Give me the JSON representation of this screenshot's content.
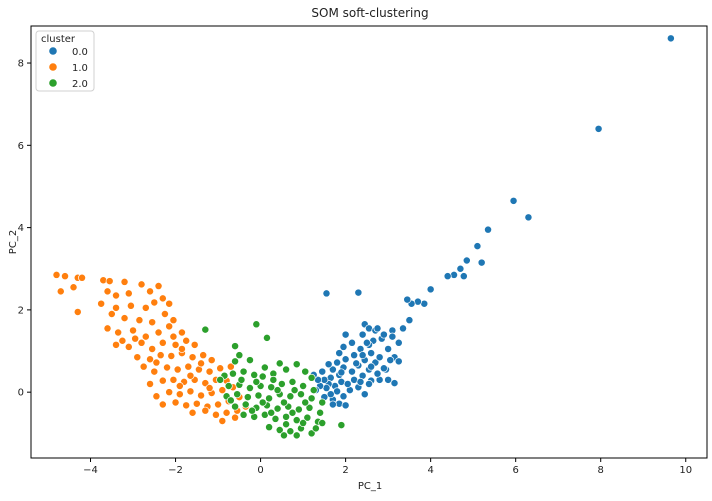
{
  "chart_data": {
    "type": "scatter",
    "title": "SOM soft-clustering",
    "xlabel": "PC_1",
    "ylabel": "PC_2",
    "xlim": [
      -5.4,
      10.5
    ],
    "ylim": [
      -1.6,
      8.9
    ],
    "x_ticks": [
      -4,
      -2,
      0,
      2,
      4,
      6,
      8,
      10
    ],
    "y_ticks": [
      0,
      2,
      4,
      6,
      8
    ],
    "grid": false,
    "legend": {
      "title": "cluster",
      "placement": "top-left"
    },
    "series": [
      {
        "name": "0.0",
        "color": "#1f77b4",
        "points": [
          [
            9.65,
            8.6
          ],
          [
            7.95,
            6.4
          ],
          [
            6.3,
            4.25
          ],
          [
            5.95,
            4.65
          ],
          [
            5.35,
            3.95
          ],
          [
            5.1,
            3.55
          ],
          [
            5.2,
            3.15
          ],
          [
            4.85,
            3.2
          ],
          [
            4.7,
            3.0
          ],
          [
            4.78,
            2.82
          ],
          [
            4.55,
            2.85
          ],
          [
            4.4,
            2.82
          ],
          [
            4.0,
            2.5
          ],
          [
            3.85,
            2.15
          ],
          [
            3.7,
            2.2
          ],
          [
            3.55,
            2.15
          ],
          [
            3.45,
            2.25
          ],
          [
            3.5,
            1.75
          ],
          [
            3.35,
            1.55
          ],
          [
            3.1,
            1.5
          ],
          [
            3.25,
            1.2
          ],
          [
            3.0,
            1.05
          ],
          [
            3.15,
            0.85
          ],
          [
            2.95,
            0.55
          ],
          [
            3.0,
            0.3
          ],
          [
            3.15,
            0.22
          ],
          [
            2.8,
            0.3
          ],
          [
            2.6,
            0.28
          ],
          [
            2.3,
            2.42
          ],
          [
            1.55,
            2.4
          ],
          [
            2.45,
            1.65
          ],
          [
            2.55,
            1.55
          ],
          [
            2.7,
            1.5
          ],
          [
            2.4,
            1.4
          ],
          [
            2.65,
            1.25
          ],
          [
            2.85,
            1.3
          ],
          [
            2.55,
            1.15
          ],
          [
            2.35,
            1.05
          ],
          [
            2.6,
            0.95
          ],
          [
            2.2,
            0.9
          ],
          [
            2.45,
            0.78
          ],
          [
            2.7,
            0.72
          ],
          [
            2.3,
            0.65
          ],
          [
            2.55,
            0.55
          ],
          [
            2.15,
            0.5
          ],
          [
            2.4,
            0.4
          ],
          [
            2.2,
            0.3
          ],
          [
            2.55,
            0.2
          ],
          [
            2.3,
            0.12
          ],
          [
            2.45,
            -0.05
          ],
          [
            2.1,
            0.05
          ],
          [
            2.0,
            1.4
          ],
          [
            2.15,
            1.2
          ],
          [
            1.95,
            1.1
          ],
          [
            1.85,
            0.95
          ],
          [
            2.0,
            0.8
          ],
          [
            1.8,
            0.72
          ],
          [
            1.95,
            0.6
          ],
          [
            1.7,
            0.55
          ],
          [
            1.85,
            0.42
          ],
          [
            1.65,
            0.35
          ],
          [
            1.9,
            0.25
          ],
          [
            1.75,
            0.15
          ],
          [
            1.6,
            0.2
          ],
          [
            1.8,
            0.02
          ],
          [
            1.95,
            -0.1
          ],
          [
            1.7,
            -0.18
          ],
          [
            1.85,
            -0.28
          ],
          [
            2.0,
            -0.32
          ],
          [
            1.65,
            -0.05
          ],
          [
            1.55,
            0.1
          ],
          [
            1.5,
            0.3
          ],
          [
            1.45,
            0.5
          ],
          [
            1.6,
            0.68
          ],
          [
            1.4,
            0.15
          ],
          [
            1.35,
            0.3
          ],
          [
            1.25,
            0.42
          ],
          [
            1.5,
            -0.12
          ],
          [
            1.7,
            -0.3
          ],
          [
            1.3,
            0.05
          ],
          [
            2.25,
            0.7
          ],
          [
            2.05,
            0.2
          ],
          [
            2.35,
            0.25
          ],
          [
            1.9,
            0.48
          ],
          [
            2.6,
            0.62
          ],
          [
            2.75,
            0.45
          ],
          [
            2.9,
            0.58
          ],
          [
            3.05,
            0.78
          ],
          [
            2.8,
            0.85
          ],
          [
            3.25,
            0.75
          ],
          [
            2.5,
            1.2
          ],
          [
            2.75,
            1.55
          ],
          [
            2.9,
            1.4
          ],
          [
            3.1,
            1.35
          ],
          [
            2.4,
            0.9
          ]
        ]
      },
      {
        "name": "1.0",
        "color": "#ff7f0e",
        "points": [
          [
            -4.8,
            2.85
          ],
          [
            -4.6,
            2.82
          ],
          [
            -4.3,
            2.78
          ],
          [
            -4.2,
            2.78
          ],
          [
            -4.4,
            2.55
          ],
          [
            -4.7,
            2.45
          ],
          [
            -4.3,
            1.95
          ],
          [
            -3.7,
            2.72
          ],
          [
            -3.55,
            2.7
          ],
          [
            -3.2,
            2.68
          ],
          [
            -2.8,
            2.62
          ],
          [
            -2.4,
            2.58
          ],
          [
            -3.6,
            2.45
          ],
          [
            -3.4,
            2.35
          ],
          [
            -3.1,
            2.4
          ],
          [
            -2.6,
            2.45
          ],
          [
            -3.75,
            2.15
          ],
          [
            -3.4,
            2.05
          ],
          [
            -3.05,
            2.1
          ],
          [
            -2.7,
            2.05
          ],
          [
            -2.5,
            2.18
          ],
          [
            -2.3,
            2.28
          ],
          [
            -2.15,
            2.15
          ],
          [
            -3.5,
            1.9
          ],
          [
            -3.2,
            1.8
          ],
          [
            -2.85,
            1.75
          ],
          [
            -2.55,
            1.7
          ],
          [
            -2.25,
            1.9
          ],
          [
            -2.05,
            1.75
          ],
          [
            -3.6,
            1.55
          ],
          [
            -3.35,
            1.45
          ],
          [
            -3.0,
            1.5
          ],
          [
            -2.7,
            1.35
          ],
          [
            -2.4,
            1.45
          ],
          [
            -2.15,
            1.6
          ],
          [
            -1.85,
            1.45
          ],
          [
            -3.4,
            1.15
          ],
          [
            -3.1,
            1.1
          ],
          [
            -2.8,
            1.2
          ],
          [
            -2.55,
            1.05
          ],
          [
            -2.3,
            1.2
          ],
          [
            -2.0,
            1.15
          ],
          [
            -1.75,
            1.25
          ],
          [
            -1.55,
            1.15
          ],
          [
            -2.9,
            0.85
          ],
          [
            -2.6,
            0.8
          ],
          [
            -2.35,
            0.9
          ],
          [
            -2.1,
            0.88
          ],
          [
            -1.85,
            0.95
          ],
          [
            -1.6,
            0.85
          ],
          [
            -1.35,
            0.9
          ],
          [
            -1.15,
            0.78
          ],
          [
            -2.75,
            0.62
          ],
          [
            -2.5,
            0.5
          ],
          [
            -2.2,
            0.6
          ],
          [
            -1.95,
            0.55
          ],
          [
            -1.7,
            0.62
          ],
          [
            -1.45,
            0.55
          ],
          [
            -1.2,
            0.5
          ],
          [
            -0.95,
            0.58
          ],
          [
            -0.7,
            0.62
          ],
          [
            -2.6,
            0.2
          ],
          [
            -2.3,
            0.28
          ],
          [
            -2.05,
            0.3
          ],
          [
            -1.8,
            0.25
          ],
          [
            -1.55,
            0.3
          ],
          [
            -1.3,
            0.22
          ],
          [
            -1.05,
            0.3
          ],
          [
            -0.8,
            0.28
          ],
          [
            -2.45,
            -0.1
          ],
          [
            -2.15,
            0.0
          ],
          [
            -1.9,
            -0.05
          ],
          [
            -1.65,
            0.02
          ],
          [
            -1.4,
            -0.08
          ],
          [
            -1.15,
            -0.02
          ],
          [
            -0.9,
            0.05
          ],
          [
            -0.65,
            0.12
          ],
          [
            -2.3,
            -0.3
          ],
          [
            -2.0,
            -0.25
          ],
          [
            -1.75,
            -0.32
          ],
          [
            -1.5,
            -0.28
          ],
          [
            -1.25,
            -0.35
          ],
          [
            -1.0,
            -0.3
          ],
          [
            -0.75,
            -0.22
          ],
          [
            -0.5,
            -0.12
          ],
          [
            -1.6,
            -0.5
          ],
          [
            -1.3,
            -0.45
          ],
          [
            -1.05,
            -0.55
          ],
          [
            -0.8,
            -0.5
          ],
          [
            -0.55,
            -0.45
          ],
          [
            -0.35,
            -0.35
          ],
          [
            -0.9,
            -0.7
          ],
          [
            -0.6,
            -0.62
          ],
          [
            -1.85,
            1.05
          ],
          [
            -1.65,
            0.4
          ],
          [
            -1.4,
            0.7
          ],
          [
            -1.9,
            0.15
          ],
          [
            -1.2,
            0.1
          ],
          [
            -2.45,
            0.72
          ],
          [
            -2.95,
            1.3
          ],
          [
            -3.25,
            1.25
          ],
          [
            -2.05,
            1.35
          ]
        ]
      },
      {
        "name": "2.0",
        "color": "#2ca02c",
        "points": [
          [
            -1.3,
            1.52
          ],
          [
            -0.6,
            1.12
          ],
          [
            -0.5,
            0.9
          ],
          [
            -0.25,
            0.78
          ],
          [
            -0.6,
            0.75
          ],
          [
            -0.1,
            1.65
          ],
          [
            0.15,
            1.32
          ],
          [
            -0.85,
            0.4
          ],
          [
            -0.65,
            0.45
          ],
          [
            -0.4,
            0.5
          ],
          [
            -0.15,
            0.42
          ],
          [
            0.05,
            0.38
          ],
          [
            0.3,
            0.45
          ],
          [
            0.6,
            0.55
          ],
          [
            0.85,
            0.68
          ],
          [
            1.05,
            0.5
          ],
          [
            1.2,
            0.35
          ],
          [
            -0.75,
            0.15
          ],
          [
            -0.5,
            0.18
          ],
          [
            -0.25,
            0.1
          ],
          [
            0.0,
            0.15
          ],
          [
            0.25,
            0.12
          ],
          [
            0.5,
            0.2
          ],
          [
            0.75,
            0.25
          ],
          [
            1.0,
            0.15
          ],
          [
            1.25,
            0.05
          ],
          [
            -0.8,
            -0.1
          ],
          [
            -0.55,
            -0.05
          ],
          [
            -0.3,
            -0.12
          ],
          [
            -0.05,
            -0.08
          ],
          [
            0.2,
            -0.15
          ],
          [
            0.45,
            -0.05
          ],
          [
            0.7,
            -0.1
          ],
          [
            0.95,
            -0.05
          ],
          [
            1.2,
            -0.15
          ],
          [
            1.45,
            -0.25
          ],
          [
            -0.6,
            -0.35
          ],
          [
            -0.35,
            -0.3
          ],
          [
            -0.1,
            -0.38
          ],
          [
            0.15,
            -0.32
          ],
          [
            0.4,
            -0.4
          ],
          [
            0.65,
            -0.35
          ],
          [
            0.9,
            -0.42
          ],
          [
            1.15,
            -0.38
          ],
          [
            1.4,
            -0.5
          ],
          [
            -0.4,
            -0.55
          ],
          [
            -0.15,
            -0.6
          ],
          [
            0.1,
            -0.55
          ],
          [
            0.35,
            -0.65
          ],
          [
            0.6,
            -0.6
          ],
          [
            0.85,
            -0.68
          ],
          [
            1.1,
            -0.62
          ],
          [
            1.35,
            -0.72
          ],
          [
            0.2,
            -0.85
          ],
          [
            0.45,
            -0.92
          ],
          [
            0.7,
            -0.95
          ],
          [
            0.95,
            -0.88
          ],
          [
            1.2,
            -1.0
          ],
          [
            0.55,
            -1.05
          ],
          [
            0.85,
            -1.05
          ],
          [
            1.45,
            -0.75
          ],
          [
            1.9,
            -0.8
          ],
          [
            -0.95,
            0.3
          ],
          [
            -0.7,
            -0.2
          ],
          [
            -0.45,
            0.3
          ],
          [
            0.05,
            -0.25
          ],
          [
            0.3,
            0.3
          ],
          [
            0.55,
            -0.25
          ],
          [
            0.8,
            0.05
          ],
          [
            1.05,
            -0.25
          ],
          [
            -0.2,
            -0.45
          ],
          [
            0.25,
            -0.5
          ],
          [
            0.75,
            -0.5
          ],
          [
            1.0,
            -0.75
          ],
          [
            0.4,
            0.05
          ],
          [
            -0.1,
            0.25
          ],
          [
            0.6,
            -0.78
          ],
          [
            1.3,
            -0.88
          ],
          [
            0.1,
            0.6
          ],
          [
            0.45,
            0.7
          ]
        ]
      }
    ]
  }
}
